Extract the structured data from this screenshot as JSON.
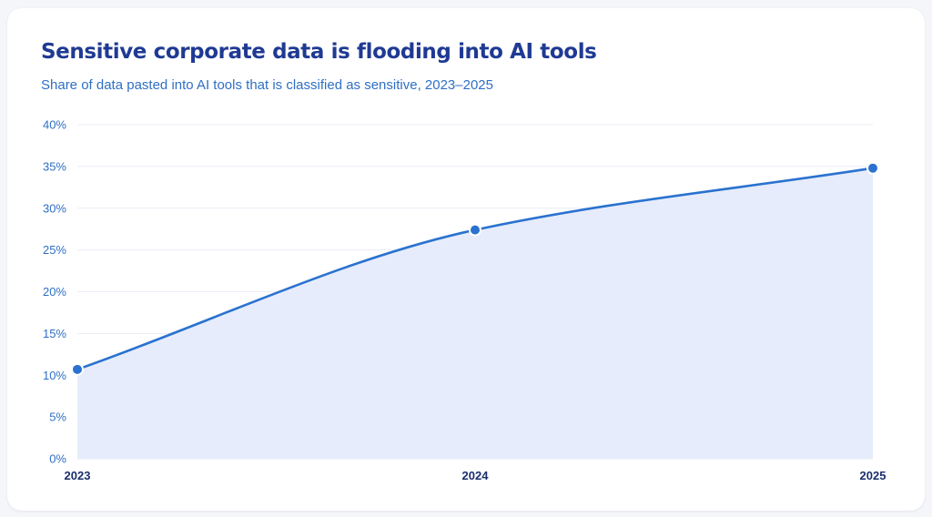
{
  "title": "Sensitive corporate data is flooding into AI tools",
  "subtitle": "Share of data pasted into AI tools that is classified as sensitive, 2023–2025",
  "colors": {
    "title": "#1f3a93",
    "subtitle": "#2f6fc4",
    "line": "#2a72cf",
    "area_fill": "#e6ecfb",
    "grid": "#e9edf5",
    "x_tick": "#1a2f6b",
    "y_tick": "#2f6fc4"
  },
  "chart_data": {
    "type": "area",
    "x": [
      "2023",
      "2024",
      "2025"
    ],
    "series": [
      {
        "values": [
          10.7,
          27.4,
          34.8
        ]
      }
    ],
    "ylim": [
      0,
      40
    ],
    "y_ticks": [
      0,
      5,
      10,
      15,
      20,
      25,
      30,
      35,
      40
    ],
    "y_tick_suffix": "%",
    "grid": true,
    "curve": "smooth",
    "markers": true,
    "legend": "none"
  }
}
